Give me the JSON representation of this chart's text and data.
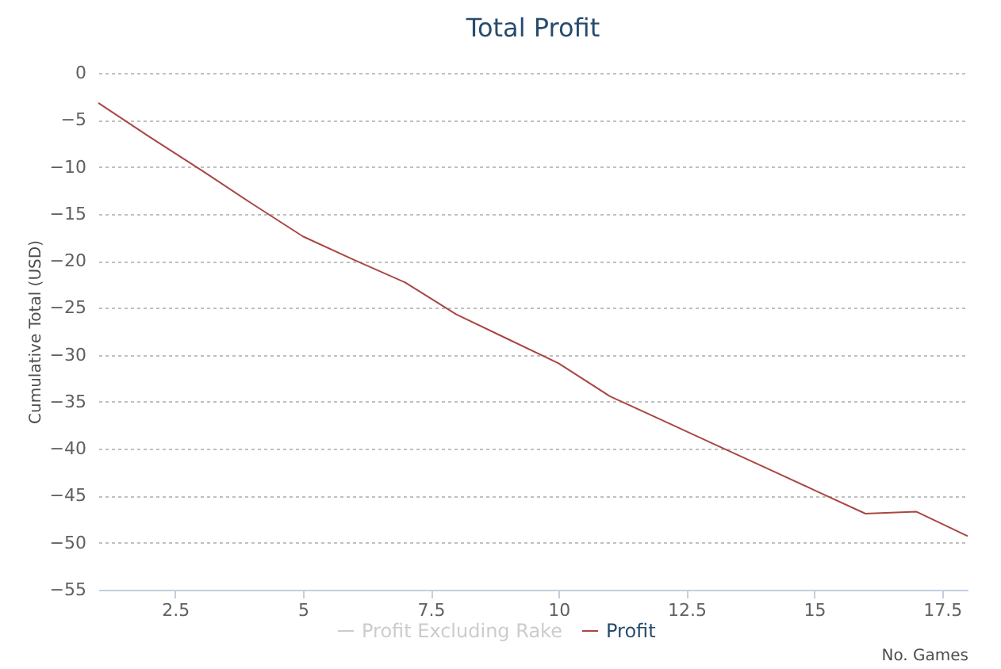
{
  "chart_data": {
    "type": "line",
    "title": "Total Profit",
    "xlabel": "No. Games",
    "ylabel": "Cumulative Total (USD)",
    "x": [
      1,
      2,
      3,
      4,
      5,
      6,
      7,
      8,
      9,
      10,
      11,
      12,
      13,
      14,
      15,
      16,
      17,
      18
    ],
    "series": [
      {
        "name": "Profit Excluding Rake",
        "color": "#cccccc",
        "values": [
          null,
          null,
          null,
          null,
          null,
          null,
          null,
          null,
          null,
          null,
          null,
          null,
          null,
          null,
          null,
          null,
          null,
          null
        ]
      },
      {
        "name": "Profit",
        "color": "#aa4643",
        "values": [
          -3.2,
          -6.8,
          -10.3,
          -13.9,
          -17.4,
          -19.9,
          -22.3,
          -25.7,
          -28.3,
          -30.9,
          -34.4,
          -36.9,
          -39.4,
          -41.9,
          -44.4,
          -46.9,
          -46.7,
          -49.3
        ]
      }
    ],
    "xlim": [
      1,
      18
    ],
    "xticks": [
      2.5,
      5,
      7.5,
      10,
      12.5,
      15,
      17.5
    ],
    "ylim": [
      -55,
      0
    ],
    "yticks": [
      -55,
      -50,
      -45,
      -40,
      -35,
      -30,
      -25,
      -20,
      -15,
      -10,
      -5,
      0
    ],
    "grid": "y",
    "legend": "bottom",
    "marker": "none",
    "line_style": "solid"
  }
}
